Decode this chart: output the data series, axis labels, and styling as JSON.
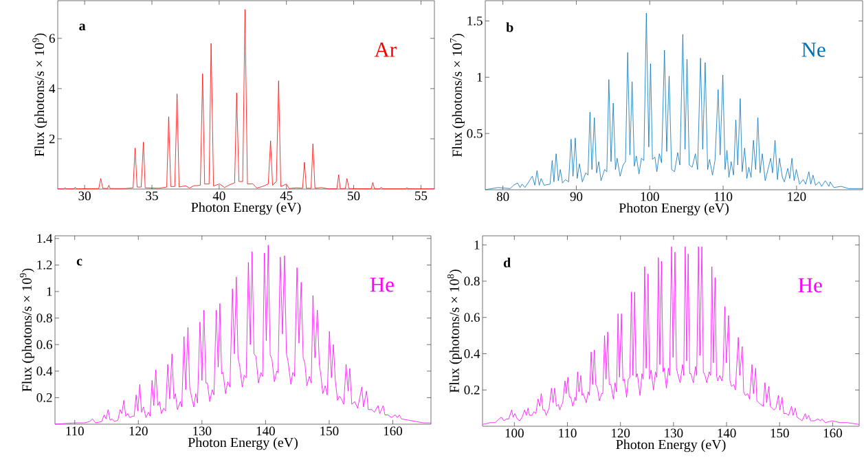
{
  "chart_data": [
    {
      "type": "line",
      "xlabel": "Photon Energy (eV)",
      "ylabel": "Flux (photons/s × 10$^{9}$)",
      "annotations": [
        "a"
      ],
      "xlim": [
        28,
        56
      ],
      "ylim": [
        0,
        7.5
      ],
      "xticks": [
        30,
        35,
        40,
        45,
        50,
        55
      ],
      "yticks": [
        2,
        4,
        6
      ],
      "series": [
        {
          "name": "Ar",
          "color": "#ff0000",
          "x": [
            28.0,
            28.45,
            28.55,
            28.65,
            29.2,
            29.3,
            29.4,
            31.05,
            31.2,
            31.35,
            31.7,
            31.8,
            31.9,
            33.0,
            33.6,
            33.75,
            33.9,
            34.2,
            34.37,
            34.5,
            35.5,
            36.1,
            36.25,
            36.4,
            36.7,
            36.87,
            37.02,
            37.5,
            37.8,
            38.1,
            38.6,
            38.77,
            38.92,
            39.25,
            39.4,
            39.58,
            40.0,
            40.1,
            40.4,
            40.7,
            41.15,
            41.3,
            41.47,
            41.75,
            41.92,
            42.1,
            42.5,
            42.8,
            43.2,
            43.65,
            43.82,
            43.97,
            44.25,
            44.42,
            44.58,
            45.0,
            45.2,
            45.76,
            46.2,
            46.34,
            46.48,
            46.83,
            46.97,
            47.12,
            47.6,
            48.1,
            48.75,
            48.88,
            49.0,
            49.38,
            49.5,
            49.65,
            51.3,
            51.42,
            51.55,
            51.95,
            52.05,
            52.15,
            53.85,
            53.95,
            54.05,
            56.0
          ],
          "values": [
            0.01,
            0.01,
            0.05,
            0.01,
            0.01,
            0.07,
            0.01,
            0.02,
            0.42,
            0.03,
            0.02,
            0.15,
            0.02,
            0.02,
            0.05,
            1.63,
            0.08,
            0.08,
            1.87,
            0.05,
            0.03,
            0.08,
            2.88,
            0.1,
            0.1,
            3.79,
            0.08,
            0.13,
            0.04,
            0.13,
            0.15,
            4.59,
            0.2,
            0.2,
            5.8,
            0.12,
            0.2,
            0.18,
            0.06,
            0.15,
            0.25,
            3.83,
            0.3,
            0.3,
            7.15,
            0.2,
            0.21,
            0.04,
            0.1,
            0.2,
            1.92,
            0.15,
            0.3,
            4.31,
            0.1,
            0.2,
            0.02,
            0.05,
            0.03,
            1.07,
            0.03,
            0.03,
            1.8,
            0.03,
            0.06,
            0.01,
            0.01,
            0.57,
            0.02,
            0.02,
            0.42,
            0.02,
            0.01,
            0.26,
            0.01,
            0.01,
            0.07,
            0.01,
            0.01,
            0.05,
            0.01,
            0.01
          ]
        }
      ]
    },
    {
      "type": "line",
      "xlabel": "Photon Energy (eV)",
      "ylabel": "Flux (photons/s × 10$^{7}$)",
      "annotations": [
        "b"
      ],
      "xlim": [
        77.6,
        129
      ],
      "ylim": [
        0,
        1.68
      ],
      "xticks": [
        80,
        90,
        100,
        110,
        120
      ],
      "yticks": [
        0.5,
        1,
        1.5
      ],
      "series": [
        {
          "name": "Ne",
          "color": "#0072bd",
          "x": [
            77.6,
            79.34,
            81.0,
            81.44,
            82.0,
            82.34,
            82.61,
            83.01,
            84.01,
            84.35,
            84.65,
            84.95,
            85.21,
            85.61,
            86.42,
            86.72,
            86.95,
            87.25,
            87.55,
            87.82,
            88.12,
            88.52,
            88.95,
            89.29,
            89.55,
            89.86,
            90.12,
            90.42,
            90.82,
            91.29,
            91.59,
            91.86,
            92.13,
            92.46,
            92.76,
            93.06,
            93.36,
            93.86,
            94.16,
            94.43,
            94.73,
            95.03,
            95.33,
            95.56,
            95.97,
            96.37,
            96.7,
            97.0,
            97.3,
            97.6,
            97.9,
            98.17,
            98.54,
            98.87,
            99.2,
            99.54,
            99.87,
            100.11,
            100.37,
            100.71,
            100.97,
            101.31,
            101.61,
            102.01,
            102.31,
            102.64,
            102.98,
            103.38,
            103.81,
            104.11,
            104.51,
            104.81,
            105.08,
            105.38,
            105.78,
            106.22,
            106.52,
            106.92,
            107.22,
            107.55,
            107.89,
            108.15,
            108.55,
            108.89,
            109.32,
            109.59,
            109.96,
            110.26,
            110.52,
            110.79,
            111.09,
            111.42,
            111.73,
            111.99,
            112.33,
            112.59,
            112.93,
            113.23,
            113.5,
            113.8,
            114.13,
            114.43,
            114.73,
            115.03,
            115.33,
            115.73,
            116.47,
            116.73,
            117.07,
            117.4,
            117.67,
            118.07,
            118.34,
            118.8,
            119.07,
            119.37,
            119.67,
            119.97,
            120.41,
            120.91,
            121.24,
            121.68,
            121.94,
            122.24,
            122.58,
            123.08,
            123.41,
            123.91,
            124.41,
            124.58,
            125.08,
            126.08,
            127.09,
            129.0
          ],
          "values": [
            0.0,
            0.02,
            0.01,
            0.04,
            0.06,
            0.02,
            0.05,
            0.02,
            0.12,
            0.04,
            0.17,
            0.04,
            0.1,
            0.04,
            0.05,
            0.26,
            0.07,
            0.32,
            0.08,
            0.18,
            0.06,
            0.09,
            0.07,
            0.45,
            0.12,
            0.46,
            0.1,
            0.23,
            0.07,
            0.15,
            0.13,
            0.69,
            0.18,
            0.64,
            0.15,
            0.25,
            0.08,
            0.18,
            0.16,
            0.98,
            0.25,
            0.77,
            0.18,
            0.28,
            0.12,
            0.22,
            0.25,
            1.22,
            0.31,
            0.96,
            0.21,
            0.3,
            0.14,
            0.28,
            0.26,
            1.57,
            0.38,
            1.12,
            0.27,
            0.29,
            0.16,
            0.32,
            0.24,
            1.24,
            0.34,
            1.01,
            0.18,
            0.16,
            0.33,
            0.22,
            1.38,
            0.36,
            1.16,
            0.22,
            0.2,
            0.32,
            0.18,
            1.17,
            0.36,
            1.13,
            0.18,
            0.27,
            0.13,
            0.26,
            0.89,
            0.31,
            1.02,
            0.18,
            0.35,
            0.11,
            0.25,
            0.13,
            0.62,
            0.22,
            0.81,
            0.16,
            0.37,
            0.1,
            0.2,
            0.11,
            0.44,
            0.18,
            0.64,
            0.15,
            0.32,
            0.08,
            0.28,
            0.15,
            0.44,
            0.09,
            0.28,
            0.11,
            0.07,
            0.19,
            0.1,
            0.28,
            0.08,
            0.18,
            0.05,
            0.09,
            0.05,
            0.16,
            0.05,
            0.13,
            0.04,
            0.07,
            0.03,
            0.08,
            0.03,
            0.07,
            0.02,
            0.03,
            0.01,
            0.01
          ]
        }
      ]
    },
    {
      "type": "line",
      "xlabel": "Photon Energy (eV)",
      "ylabel": "Flux (photons/s × 10$^{9}$)",
      "annotations": [
        "c"
      ],
      "xlim": [
        106.9,
        166
      ],
      "ylim": [
        0,
        1.42
      ],
      "xticks": [
        110,
        120,
        130,
        140,
        150,
        160
      ],
      "yticks": [
        0.2,
        0.4,
        0.6,
        0.8,
        1,
        1.2,
        1.4
      ],
      "series": [
        {
          "name": "He",
          "color": "#ff00ff",
          "x": [
            106.91,
            110.0,
            111.54,
            112.32,
            112.78,
            113.28,
            114.25,
            114.63,
            114.94,
            115.25,
            115.56,
            115.87,
            116.25,
            116.79,
            117.14,
            117.41,
            117.72,
            118.03,
            118.34,
            118.65,
            119.07,
            119.34,
            119.65,
            119.92,
            120.23,
            120.5,
            120.81,
            121.2,
            121.58,
            121.85,
            122.16,
            122.43,
            122.74,
            123.05,
            123.32,
            123.63,
            123.98,
            124.28,
            124.63,
            124.94,
            125.29,
            125.6,
            125.83,
            126.14,
            126.6,
            126.83,
            127.18,
            127.45,
            127.8,
            128.07,
            128.34,
            128.72,
            129.03,
            129.3,
            129.69,
            130.0,
            130.31,
            130.62,
            130.85,
            131.23,
            131.62,
            131.89,
            132.24,
            132.55,
            132.82,
            133.09,
            133.32,
            133.71,
            134.05,
            134.4,
            134.79,
            135.1,
            135.4,
            135.67,
            135.94,
            136.33,
            136.64,
            136.95,
            137.3,
            137.6,
            137.88,
            138.18,
            138.49,
            138.88,
            139.27,
            139.54,
            139.81,
            140.11,
            140.42,
            140.73,
            141.0,
            141.39,
            141.77,
            141.97,
            142.31,
            142.66,
            142.97,
            143.28,
            143.51,
            143.98,
            144.28,
            144.55,
            144.94,
            145.25,
            145.6,
            145.91,
            146.18,
            146.49,
            146.87,
            147.18,
            147.45,
            147.76,
            148.14,
            148.45,
            148.69,
            148.99,
            149.38,
            149.69,
            150.04,
            150.35,
            150.66,
            150.96,
            151.31,
            151.62,
            151.93,
            152.28,
            152.66,
            152.97,
            153.24,
            153.55,
            154.01,
            154.48,
            155.13,
            155.4,
            155.87,
            156.14,
            156.72,
            157.1,
            157.68,
            157.95,
            158.49,
            158.76,
            159.23,
            159.8,
            160.38,
            160.69,
            161.04,
            161.35,
            162.51,
            163.67,
            164.82,
            165.98
          ],
          "values": [
            0.0,
            0.01,
            0.01,
            0.02,
            0.04,
            0.01,
            0.02,
            0.07,
            0.04,
            0.11,
            0.03,
            0.04,
            0.02,
            0.03,
            0.11,
            0.08,
            0.18,
            0.06,
            0.08,
            0.05,
            0.06,
            0.06,
            0.22,
            0.1,
            0.3,
            0.09,
            0.13,
            0.05,
            0.09,
            0.06,
            0.33,
            0.14,
            0.41,
            0.14,
            0.17,
            0.08,
            0.12,
            0.1,
            0.45,
            0.19,
            0.53,
            0.19,
            0.23,
            0.11,
            0.17,
            0.13,
            0.66,
            0.26,
            0.73,
            0.28,
            0.21,
            0.13,
            0.23,
            0.16,
            0.77,
            0.33,
            0.86,
            0.31,
            0.31,
            0.17,
            0.26,
            0.22,
            0.86,
            0.43,
            0.91,
            0.38,
            0.39,
            0.23,
            0.32,
            0.28,
            1.02,
            0.53,
            1.11,
            0.5,
            0.44,
            0.28,
            0.37,
            0.35,
            1.22,
            0.6,
            1.3,
            0.53,
            0.51,
            0.31,
            0.39,
            0.36,
            1.29,
            0.63,
            1.35,
            0.52,
            0.49,
            0.32,
            0.4,
            0.39,
            1.26,
            0.68,
            1.27,
            0.53,
            0.48,
            0.3,
            0.39,
            0.36,
            1.18,
            0.61,
            1.07,
            0.5,
            0.46,
            0.29,
            0.36,
            0.31,
            0.97,
            0.5,
            0.86,
            0.45,
            0.37,
            0.23,
            0.29,
            0.22,
            0.7,
            0.35,
            0.6,
            0.33,
            0.18,
            0.21,
            0.19,
            0.15,
            0.45,
            0.25,
            0.42,
            0.15,
            0.17,
            0.12,
            0.28,
            0.13,
            0.25,
            0.11,
            0.11,
            0.09,
            0.14,
            0.08,
            0.14,
            0.07,
            0.07,
            0.05,
            0.07,
            0.05,
            0.07,
            0.04,
            0.03,
            0.02,
            0.01,
            0.01
          ]
        }
      ]
    },
    {
      "type": "line",
      "xlabel": "Photon Energy (eV)",
      "ylabel": "Flux (photons/s × 10$^{8}$)",
      "annotations": [
        "d"
      ],
      "xlim": [
        94,
        165
      ],
      "ylim": [
        0,
        1.05
      ],
      "xticks": [
        100,
        110,
        120,
        130,
        140,
        150,
        160
      ],
      "yticks": [
        0.2,
        0.4,
        0.6,
        0.8,
        1
      ],
      "series": [
        {
          "name": "He",
          "color": "#ff00ff",
          "x": [
            94.01,
            95.48,
            96.4,
            97.1,
            97.56,
            98.02,
            98.48,
            98.94,
            99.49,
            99.77,
            100.09,
            100.55,
            101.01,
            101.47,
            101.93,
            102.26,
            102.58,
            102.86,
            103.32,
            103.69,
            104.05,
            104.47,
            104.79,
            105.07,
            105.39,
            105.71,
            105.99,
            106.54,
            107.0,
            107.28,
            107.6,
            107.92,
            108.29,
            108.57,
            108.94,
            109.12,
            109.54,
            109.77,
            110.09,
            110.37,
            110.64,
            111.01,
            111.43,
            111.61,
            111.93,
            112.16,
            112.53,
            112.76,
            112.99,
            113.55,
            113.92,
            114.15,
            114.47,
            114.75,
            115.07,
            115.34,
            115.67,
            116.03,
            116.45,
            116.68,
            117.0,
            117.28,
            117.6,
            117.88,
            118.2,
            118.66,
            118.98,
            119.26,
            119.54,
            119.81,
            120.18,
            120.46,
            120.73,
            121.15,
            121.47,
            121.75,
            122.07,
            122.35,
            122.67,
            122.95,
            123.18,
            123.68,
            124.05,
            124.28,
            124.56,
            124.84,
            125.2,
            125.48,
            125.76,
            126.22,
            126.59,
            126.86,
            127.14,
            127.42,
            127.74,
            128.02,
            128.25,
            128.66,
            129.03,
            129.26,
            129.63,
            129.91,
            130.27,
            130.55,
            130.78,
            131.24,
            131.7,
            131.93,
            132.21,
            132.49,
            132.76,
            133.04,
            133.27,
            133.73,
            134.15,
            134.37,
            134.7,
            134.97,
            135.34,
            135.62,
            135.94,
            136.26,
            136.73,
            137.0,
            137.23,
            137.51,
            137.83,
            138.11,
            138.34,
            138.71,
            139.12,
            139.31,
            139.67,
            139.95,
            140.37,
            140.64,
            140.92,
            141.38,
            141.66,
            142.21,
            142.48,
            142.95,
            143.22,
            143.54,
            143.96,
            144.33,
            144.79,
            145.07,
            145.48,
            145.71,
            146.08,
            146.45,
            146.91,
            147.23,
            147.55,
            147.97,
            148.25,
            148.57,
            148.94,
            149.31,
            149.77,
            150.04,
            150.46,
            150.78,
            151.24,
            151.7,
            152.25,
            152.53,
            152.95,
            153.27,
            153.77,
            154.24,
            154.83,
            155.11,
            155.48,
            155.85,
            156.54,
            157.23,
            157.69,
            158.01,
            158.61,
            159.9,
            161.38,
            162.76,
            164.97
          ],
          "values": [
            0.01,
            0.02,
            0.02,
            0.04,
            0.05,
            0.03,
            0.04,
            0.04,
            0.09,
            0.05,
            0.07,
            0.04,
            0.03,
            0.05,
            0.09,
            0.06,
            0.1,
            0.06,
            0.06,
            0.08,
            0.07,
            0.15,
            0.11,
            0.18,
            0.09,
            0.09,
            0.06,
            0.1,
            0.21,
            0.13,
            0.21,
            0.11,
            0.12,
            0.09,
            0.12,
            0.13,
            0.25,
            0.18,
            0.27,
            0.16,
            0.16,
            0.11,
            0.16,
            0.14,
            0.3,
            0.19,
            0.28,
            0.17,
            0.18,
            0.13,
            0.19,
            0.17,
            0.41,
            0.23,
            0.42,
            0.23,
            0.21,
            0.14,
            0.18,
            0.18,
            0.5,
            0.26,
            0.52,
            0.23,
            0.23,
            0.15,
            0.24,
            0.19,
            0.62,
            0.27,
            0.62,
            0.25,
            0.26,
            0.16,
            0.26,
            0.27,
            0.74,
            0.28,
            0.74,
            0.27,
            0.29,
            0.17,
            0.29,
            0.26,
            0.88,
            0.32,
            0.84,
            0.26,
            0.31,
            0.2,
            0.3,
            0.27,
            0.93,
            0.34,
            0.91,
            0.3,
            0.32,
            0.21,
            0.32,
            0.28,
            0.99,
            0.38,
            0.96,
            0.32,
            0.29,
            0.24,
            0.34,
            0.28,
            0.99,
            0.36,
            0.95,
            0.29,
            0.29,
            0.24,
            0.33,
            0.28,
            0.99,
            0.39,
            0.99,
            0.3,
            0.28,
            0.24,
            0.3,
            0.28,
            0.88,
            0.35,
            0.82,
            0.28,
            0.25,
            0.28,
            0.25,
            0.28,
            0.66,
            0.35,
            0.61,
            0.25,
            0.22,
            0.23,
            0.2,
            0.49,
            0.28,
            0.44,
            0.19,
            0.17,
            0.18,
            0.15,
            0.34,
            0.18,
            0.32,
            0.14,
            0.13,
            0.12,
            0.11,
            0.24,
            0.13,
            0.22,
            0.11,
            0.1,
            0.09,
            0.1,
            0.17,
            0.09,
            0.16,
            0.07,
            0.07,
            0.06,
            0.11,
            0.06,
            0.1,
            0.05,
            0.04,
            0.03,
            0.07,
            0.04,
            0.06,
            0.03,
            0.03,
            0.04,
            0.03,
            0.04,
            0.02,
            0.03,
            0.02,
            0.02,
            0.01
          ]
        }
      ]
    }
  ]
}
